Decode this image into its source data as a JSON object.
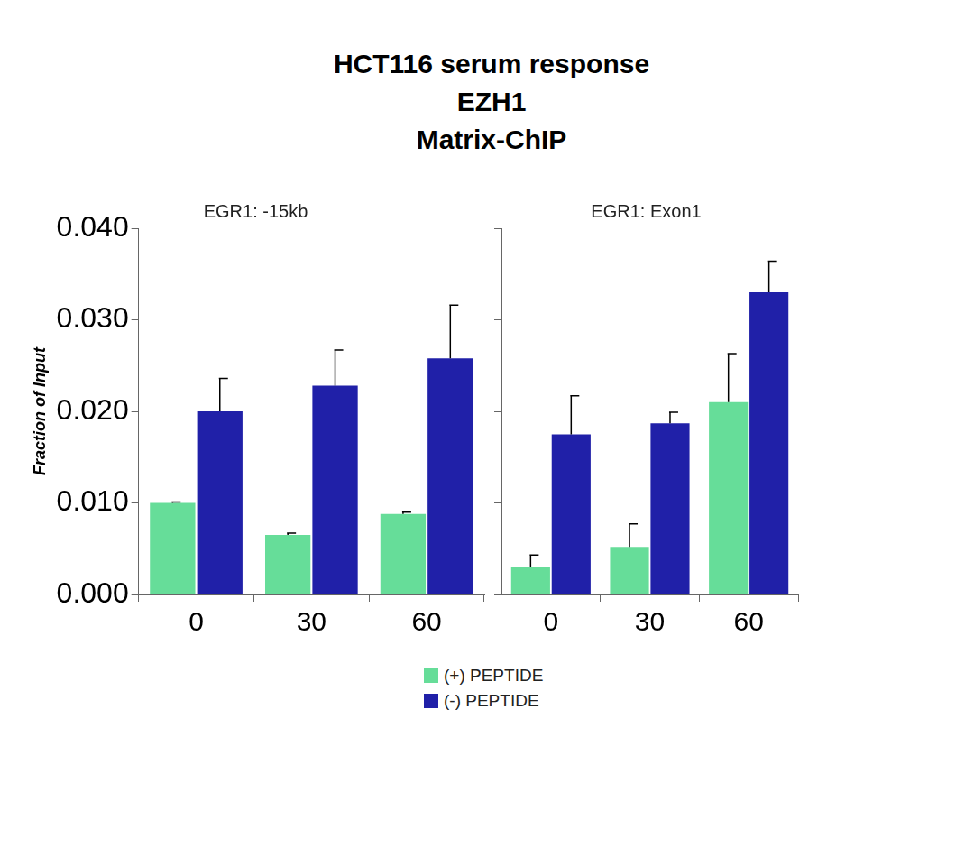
{
  "title": [
    "HCT116 serum response",
    "EZH1",
    "Matrix-ChIP"
  ],
  "chart_data": [
    {
      "type": "bar",
      "subtitle": "EGR1: -15kb",
      "y_label": "Fraction of Input",
      "categories": [
        "0",
        "30",
        "60"
      ],
      "series": [
        {
          "name": "(+) PEPTIDE",
          "color": "#66dd99",
          "values": [
            0.01,
            0.0065,
            0.0088
          ],
          "errors": [
            0.0001,
            0.0002,
            0.0002
          ]
        },
        {
          "name": "(-) PEPTIDE",
          "color": "#2020a8",
          "values": [
            0.02,
            0.0228,
            0.0258
          ],
          "errors": [
            0.0036,
            0.0039,
            0.0058
          ]
        }
      ],
      "ylim": [
        0,
        0.04
      ],
      "yticks": [
        {
          "value": 0,
          "label": "0.000"
        },
        {
          "value": 0.01,
          "label": "0.010"
        },
        {
          "value": 0.02,
          "label": "0.020"
        },
        {
          "value": 0.03,
          "label": "0.030"
        },
        {
          "value": 0.04,
          "label": "0.040"
        }
      ],
      "grid": false,
      "legend": "bottom"
    },
    {
      "type": "bar",
      "subtitle": "EGR1: Exon1",
      "categories": [
        "0",
        "30",
        "60"
      ],
      "series": [
        {
          "name": "(+) PEPTIDE",
          "color": "#66dd99",
          "values": [
            0.003,
            0.0052,
            0.021
          ],
          "errors": [
            0.0013,
            0.0025,
            0.0053
          ]
        },
        {
          "name": "(-) PEPTIDE",
          "color": "#2020a8",
          "values": [
            0.0175,
            0.0187,
            0.033
          ],
          "errors": [
            0.0042,
            0.0012,
            0.0034
          ]
        }
      ],
      "ylim": [
        0,
        0.04
      ],
      "yticks": [
        {
          "value": 0,
          "label": "0.000"
        },
        {
          "value": 0.01,
          "label": "0.010"
        },
        {
          "value": 0.02,
          "label": "0.020"
        },
        {
          "value": 0.03,
          "label": "0.030"
        },
        {
          "value": 0.04,
          "label": "0.040"
        }
      ],
      "grid": false,
      "tick_labels": "x"
    }
  ]
}
